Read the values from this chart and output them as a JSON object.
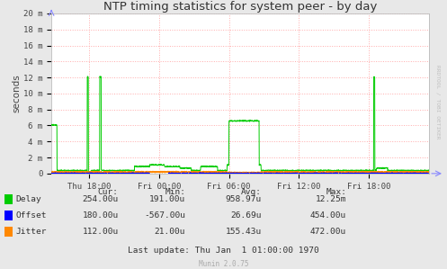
{
  "title": "NTP timing statistics for system peer - by day",
  "ylabel": "seconds",
  "bg_color": "#e8e8e8",
  "plot_bg_color": "#ffffff",
  "grid_color": "#ffaaaa",
  "tick_labels": [
    "Thu 18:00",
    "Fri 00:00",
    "Fri 06:00",
    "Fri 12:00",
    "Fri 18:00"
  ],
  "ylim": [
    0,
    0.02
  ],
  "ytick_vals": [
    0,
    0.002,
    0.004,
    0.006,
    0.008,
    0.01,
    0.012,
    0.014,
    0.016,
    0.018,
    0.02
  ],
  "ytick_labels": [
    "0",
    "2 m",
    "4 m",
    "6 m",
    "8 m",
    "10 m",
    "12 m",
    "14 m",
    "16 m",
    "18 m",
    "20 m"
  ],
  "delay_color": "#00cc00",
  "offset_color": "#0000ff",
  "jitter_color": "#ff8800",
  "watermark": "RRDTOOL / TOBI OETIKER",
  "footer_text": "Munin 2.0.75",
  "legend": [
    {
      "label": "Delay",
      "cur": "254.00u",
      "min": "191.00u",
      "avg": "958.97u",
      "max": "12.25m"
    },
    {
      "label": "Offset",
      "cur": "180.00u",
      "min": "-567.00u",
      "avg": "26.69u",
      "max": "454.00u"
    },
    {
      "label": "Jitter",
      "cur": "112.00u",
      "min": "21.00u",
      "avg": "155.43u",
      "max": "472.00u"
    }
  ],
  "last_update": "Last update: Thu Jan  1 01:00:00 1970"
}
